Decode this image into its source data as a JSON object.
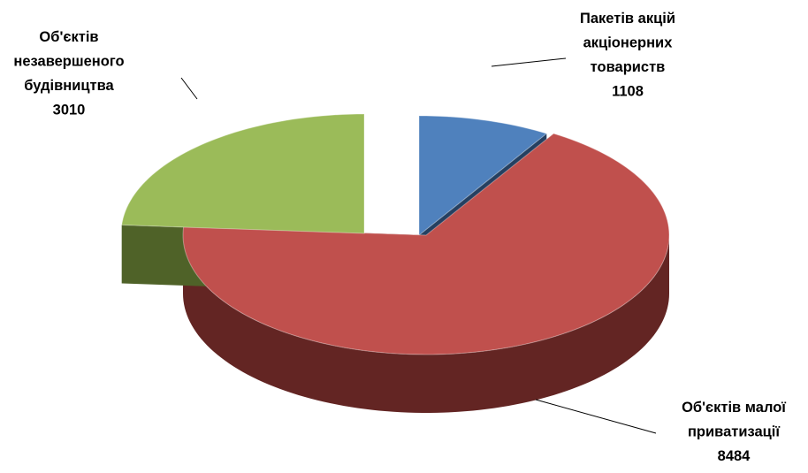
{
  "chart_data": {
    "type": "pie",
    "style": "3d-exploded",
    "legend": "none",
    "slices": [
      {
        "name": "Пакетів акцій акціонерних товариств",
        "label_lines": [
          "Пакетів акцій",
          "акціонерних",
          "товариств"
        ],
        "value": 1108,
        "value_label": "1108",
        "color": "#4F81BD",
        "side_color": "#254061"
      },
      {
        "name": "Об'єктів малої приватизації",
        "label_lines": [
          "Об'єктів малої",
          "приватизації"
        ],
        "value": 8484,
        "value_label": "8484",
        "color": "#C0504D",
        "side_color": "#632523"
      },
      {
        "name": "Об'єктів незавершеного будівництва",
        "label_lines": [
          "Об'єктів",
          "незавершеного",
          "будівництва"
        ],
        "value": 3010,
        "value_label": "3010",
        "color": "#9BBB59",
        "side_color": "#4F6228"
      }
    ]
  }
}
